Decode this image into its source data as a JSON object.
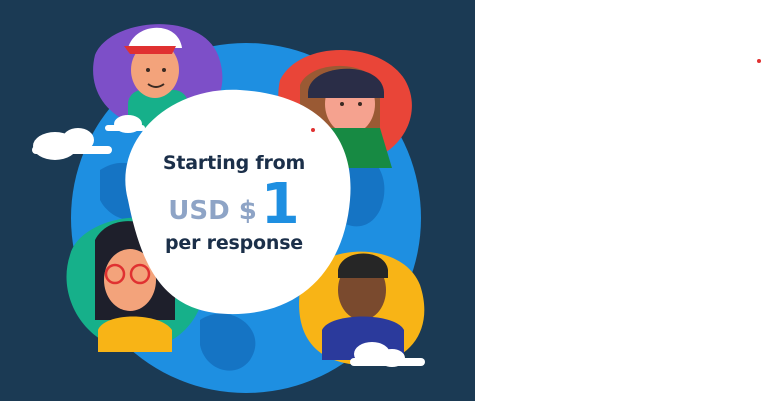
{
  "promo": {
    "line1": "Starting from",
    "currency": "USD $",
    "amount": "1",
    "line3": "per response"
  },
  "icons": [
    "globe-illustration",
    "person-avatar",
    "cloud-icon"
  ],
  "colors": {
    "background": "#1b3a54",
    "globe": "#1e8fe1",
    "accent_red": "#e03131",
    "purple": "#7d4fc8",
    "green": "#16b08a",
    "yellow": "#f8b416",
    "text_dark": "#1b2f49",
    "text_muted": "#8ea4c6"
  }
}
